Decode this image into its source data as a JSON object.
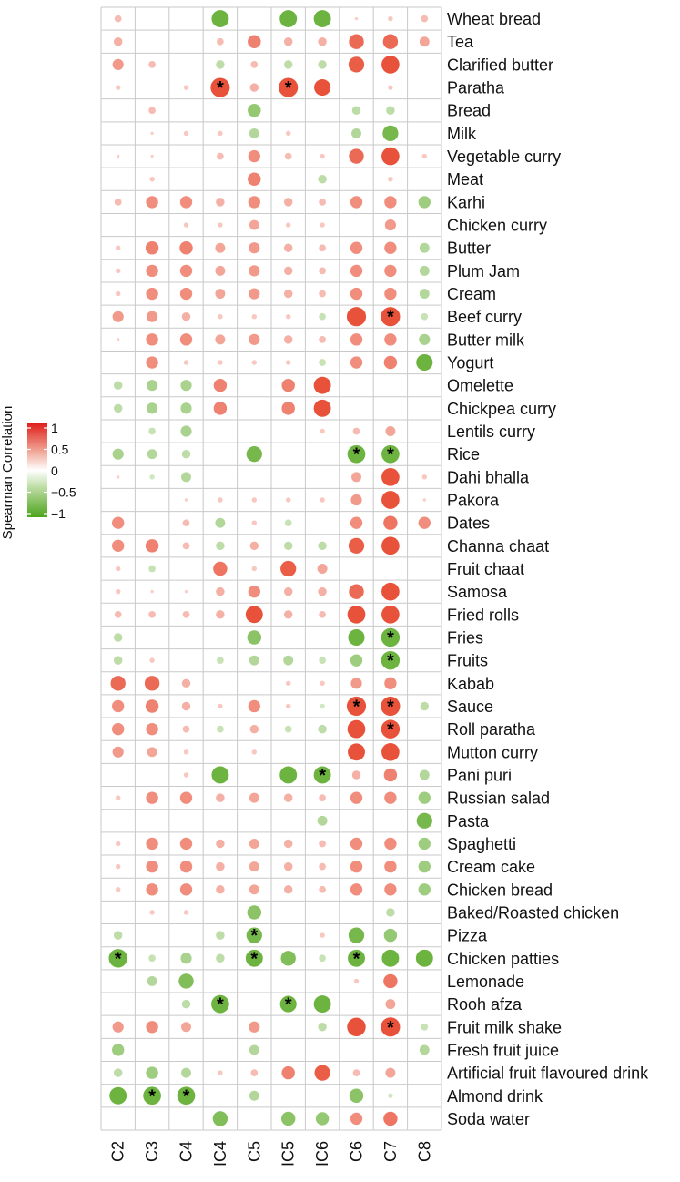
{
  "chart_data": {
    "type": "heatmap",
    "subtype": "correlation-dot-matrix",
    "columns": [
      "C2",
      "C3",
      "C4",
      "IC4",
      "C5",
      "IC5",
      "IC6",
      "C6",
      "C7",
      "C8"
    ],
    "rows": [
      "Wheat bread",
      "Tea",
      "Clarified butter",
      "Paratha",
      "Bread",
      "Milk",
      "Vegetable curry",
      "Meat",
      "Karhi",
      "Chicken curry",
      "Butter",
      "Plum Jam",
      "Cream",
      "Beef curry",
      "Butter milk",
      "Yogurt",
      "Omelette",
      "Chickpea curry",
      "Lentils curry",
      "Rice",
      "Dahi bhalla",
      "Pakora",
      "Dates",
      "Channa chaat",
      "Fruit chaat",
      "Samosa",
      "Fried rolls",
      "Fries",
      "Fruits",
      "Kabab",
      "Sauce",
      "Roll paratha",
      "Mutton curry",
      "Pani puri",
      "Russian salad",
      "Pasta",
      "Spaghetti",
      "Cream cake",
      "Chicken bread",
      "Baked/Roasted chicken",
      "Pizza",
      "Chicken patties",
      "Lemonade",
      "Rooh afza",
      "Fruit milk shake",
      "Fresh fruit juice",
      "Artificial fruit flavoured drink",
      "Almond drink",
      "Soda water"
    ],
    "values": [
      [
        0.1,
        0,
        0,
        -0.6,
        0,
        -0.6,
        -0.6,
        0.02,
        0.05,
        0.1
      ],
      [
        0.15,
        0,
        0,
        0.1,
        0.35,
        0.15,
        0.15,
        0.45,
        0.45,
        0.2
      ],
      [
        0.25,
        0.1,
        0,
        -0.15,
        0.1,
        -0.15,
        -0.15,
        0.5,
        0.65,
        0
      ],
      [
        0.05,
        0,
        0.05,
        0.75,
        0.15,
        0.75,
        0.55,
        0,
        0.05,
        0
      ],
      [
        0,
        0.1,
        0,
        0,
        -0.35,
        0,
        0,
        -0.15,
        -0.15,
        0
      ],
      [
        0,
        0.02,
        0.05,
        0.05,
        -0.2,
        0.05,
        0,
        -0.2,
        -0.5,
        0
      ],
      [
        0.02,
        0.02,
        0,
        0.1,
        0.3,
        0.1,
        0.05,
        0.45,
        0.65,
        0.05
      ],
      [
        0,
        0.05,
        0,
        0,
        0.35,
        0,
        -0.15,
        0,
        0.05,
        0
      ],
      [
        0.1,
        0.3,
        0.3,
        0.15,
        0.3,
        0.15,
        0.1,
        0.3,
        0.3,
        -0.3
      ],
      [
        0,
        0,
        0.05,
        0.05,
        0.2,
        0.05,
        0.05,
        0,
        0.25,
        0
      ],
      [
        0.05,
        0.35,
        0.35,
        0.2,
        0.25,
        0.15,
        0.1,
        0.3,
        0.3,
        -0.2
      ],
      [
        0.05,
        0.3,
        0.3,
        0.2,
        0.25,
        0.15,
        0.1,
        0.3,
        0.3,
        -0.2
      ],
      [
        0.05,
        0.3,
        0.3,
        0.2,
        0.25,
        0.15,
        0.1,
        0.3,
        0.3,
        -0.2
      ],
      [
        0.25,
        0.25,
        0.15,
        0.05,
        0.05,
        0.05,
        -0.1,
        0.75,
        0.75,
        -0.1
      ],
      [
        0.02,
        0.3,
        0.3,
        0.2,
        0.25,
        0.15,
        0.1,
        0.3,
        0.3,
        -0.25
      ],
      [
        0,
        0.3,
        0.05,
        0.05,
        0.05,
        0.05,
        -0.1,
        0.3,
        0.35,
        -0.55
      ],
      [
        -0.15,
        -0.25,
        -0.25,
        0.35,
        0,
        0.35,
        0.6,
        0,
        0,
        0
      ],
      [
        -0.15,
        -0.25,
        -0.25,
        0.35,
        0,
        0.35,
        0.6,
        0,
        0,
        0
      ],
      [
        0,
        -0.1,
        -0.25,
        0,
        0,
        0,
        0.05,
        0.1,
        0.2,
        0
      ],
      [
        -0.25,
        -0.2,
        -0.15,
        0,
        -0.5,
        0,
        0,
        -0.65,
        -0.65,
        0
      ],
      [
        0.02,
        -0.05,
        -0.2,
        0,
        0,
        0,
        0,
        0.2,
        0.65,
        0.05
      ],
      [
        0,
        0,
        0.02,
        0.05,
        0.05,
        0.05,
        0.05,
        0.25,
        0.65,
        0.02
      ],
      [
        0.3,
        0,
        0.1,
        -0.2,
        0.05,
        -0.1,
        0,
        0.3,
        0.4,
        0.3
      ],
      [
        0.3,
        0.35,
        0.1,
        -0.15,
        0.15,
        -0.15,
        -0.15,
        0.5,
        0.65,
        0
      ],
      [
        0.05,
        -0.1,
        0,
        0.4,
        0.05,
        0.5,
        0.2,
        0,
        0,
        0
      ],
      [
        0.05,
        0.02,
        0.02,
        0.15,
        0.3,
        0.15,
        0.15,
        0.45,
        0.65,
        0
      ],
      [
        0.1,
        0.1,
        0.1,
        0.15,
        0.6,
        0.15,
        0.1,
        0.65,
        0.65,
        0
      ],
      [
        -0.15,
        0,
        0,
        0,
        -0.4,
        0,
        0,
        -0.55,
        -0.7,
        0
      ],
      [
        -0.15,
        0.05,
        0,
        -0.1,
        -0.2,
        -0.2,
        -0.1,
        -0.3,
        -0.7,
        0
      ],
      [
        0.45,
        0.45,
        0.15,
        0,
        0,
        0.05,
        0.05,
        0.25,
        0.3,
        0
      ],
      [
        0.3,
        0.35,
        0.15,
        0.05,
        0.3,
        0.05,
        -0.05,
        0.75,
        0.75,
        -0.15
      ],
      [
        0.3,
        0.3,
        0.1,
        -0.1,
        0.15,
        -0.1,
        -0.15,
        0.65,
        0.7,
        0
      ],
      [
        0.25,
        0.2,
        0.05,
        0,
        0.05,
        0,
        0,
        0.6,
        0.65,
        0
      ],
      [
        0,
        0,
        0.05,
        -0.6,
        0,
        -0.6,
        -0.6,
        0.15,
        0.35,
        -0.2
      ],
      [
        0.05,
        0.3,
        0.3,
        0.15,
        0.2,
        0.15,
        0.1,
        0.3,
        0.3,
        -0.3
      ],
      [
        0,
        0,
        0,
        0,
        0,
        0,
        -0.2,
        0,
        0,
        -0.5
      ],
      [
        0.05,
        0.3,
        0.3,
        0.15,
        0.2,
        0.15,
        0.1,
        0.3,
        0.3,
        -0.3
      ],
      [
        0.05,
        0.3,
        0.3,
        0.15,
        0.2,
        0.15,
        0.1,
        0.3,
        0.3,
        -0.3
      ],
      [
        0.05,
        0.3,
        0.3,
        0.15,
        0.2,
        0.15,
        0.1,
        0.3,
        0.3,
        -0.3
      ],
      [
        0,
        0.05,
        0.05,
        0,
        -0.4,
        0,
        0,
        0,
        -0.15,
        0
      ],
      [
        -0.15,
        0,
        0,
        -0.15,
        -0.5,
        0,
        0.05,
        -0.5,
        -0.35,
        0
      ],
      [
        -0.7,
        -0.1,
        -0.25,
        -0.15,
        -0.6,
        -0.45,
        -0.1,
        -0.6,
        -0.6,
        -0.6
      ],
      [
        0,
        -0.2,
        -0.45,
        0,
        0,
        0,
        0,
        0.05,
        0.4,
        0
      ],
      [
        0,
        0,
        -0.15,
        -0.65,
        0,
        -0.55,
        -0.6,
        0,
        0.2,
        0
      ],
      [
        0.25,
        0.3,
        0.2,
        0,
        0.25,
        0,
        -0.15,
        0.7,
        0.75,
        -0.1
      ],
      [
        -0.3,
        0,
        0,
        0,
        -0.2,
        0,
        0,
        0,
        0,
        -0.2
      ],
      [
        -0.15,
        -0.3,
        -0.2,
        0.05,
        0.1,
        0.35,
        0.5,
        0.1,
        0.2,
        0
      ],
      [
        -0.6,
        -0.65,
        -0.65,
        0,
        -0.2,
        0,
        0,
        -0.4,
        -0.05,
        0
      ],
      [
        0,
        0,
        0,
        -0.45,
        0,
        -0.4,
        -0.35,
        0.3,
        0.4,
        0
      ]
    ],
    "significant": [
      [
        3,
        3
      ],
      [
        3,
        5
      ],
      [
        13,
        8
      ],
      [
        19,
        7
      ],
      [
        19,
        8
      ],
      [
        27,
        8
      ],
      [
        28,
        8
      ],
      [
        30,
        7
      ],
      [
        30,
        8
      ],
      [
        31,
        8
      ],
      [
        33,
        6
      ],
      [
        40,
        4
      ],
      [
        41,
        0
      ],
      [
        41,
        4
      ],
      [
        41,
        7
      ],
      [
        43,
        3
      ],
      [
        43,
        5
      ],
      [
        44,
        8
      ],
      [
        47,
        1
      ],
      [
        47,
        2
      ]
    ],
    "significance_marker": "*",
    "legend": {
      "title": "Spearman Correlation",
      "ticks": [
        "1",
        "0.5",
        "0",
        "−0.5",
        "−1"
      ],
      "tick_values": [
        1,
        0.5,
        0,
        -0.5,
        -1
      ],
      "placement": "left"
    },
    "colors": {
      "positive": "#e8523a",
      "positive_max": "#e0201c",
      "negative": "#6db33f",
      "negative_max": "#4ca51c",
      "grid": "#c9c9c9"
    }
  }
}
